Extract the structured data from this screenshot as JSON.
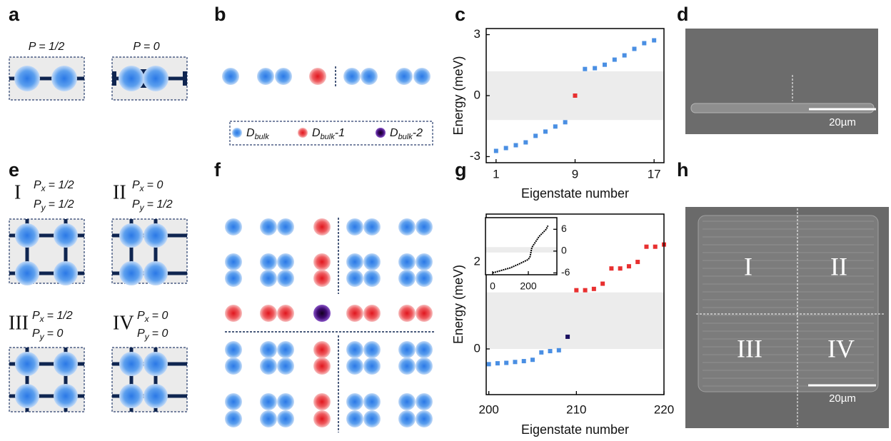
{
  "panel_labels": [
    "a",
    "b",
    "c",
    "d",
    "e",
    "f",
    "g",
    "h"
  ],
  "panel_a": {
    "labels": [
      "P = 1/2",
      "P = 0"
    ]
  },
  "panel_b": {
    "legend": [
      {
        "symbol": "D",
        "subscript": "bulk"
      },
      {
        "symbol": "D",
        "subscript": "bulk",
        "suffix": "-1"
      },
      {
        "symbol": "D",
        "subscript": "bulk",
        "suffix": "-2"
      }
    ]
  },
  "panel_d": {
    "scale_bar": "20µm"
  },
  "panel_e": {
    "cells": [
      {
        "numeral": "I",
        "lines": [
          {
            "symbol": "P",
            "subscript": "x",
            "value": "= 1/2"
          },
          {
            "symbol": "P",
            "subscript": "y",
            "value": "= 1/2"
          }
        ]
      },
      {
        "numeral": "II",
        "lines": [
          {
            "symbol": "P",
            "subscript": "x",
            "value": "=   0"
          },
          {
            "symbol": "P",
            "subscript": "y",
            "value": "= 1/2"
          }
        ]
      },
      {
        "numeral": "III",
        "lines": [
          {
            "symbol": "P",
            "subscript": "x",
            "value": "= 1/2"
          },
          {
            "symbol": "P",
            "subscript": "y",
            "value": "=  0"
          }
        ]
      },
      {
        "numeral": "IV",
        "lines": [
          {
            "symbol": "P",
            "subscript": "x",
            "value": "=   0"
          },
          {
            "symbol": "P",
            "subscript": "y",
            "value": "=   0"
          }
        ]
      }
    ]
  },
  "panel_h": {
    "regions": [
      "I",
      "II",
      "III",
      "IV"
    ],
    "scale_bar": "20µm"
  },
  "chart_data": [
    {
      "type": "scatter",
      "xlabel": "Eigenstate number",
      "ylabel": "Energy (meV)",
      "xlim": [
        0,
        18
      ],
      "ylim": [
        -3.3,
        3.3
      ],
      "xticks": [
        1,
        9,
        17
      ],
      "yticks": [
        3,
        0,
        -3
      ],
      "band": [
        -1.2,
        1.2
      ],
      "series": [
        {
          "color": "#4a8fe3",
          "x": [
            1,
            2,
            3,
            4,
            5,
            6,
            7,
            8,
            10,
            11,
            12,
            13,
            14,
            15,
            16,
            17
          ],
          "values": [
            -2.72,
            -2.58,
            -2.44,
            -2.3,
            -1.98,
            -1.77,
            -1.52,
            -1.31,
            1.31,
            1.35,
            1.52,
            1.77,
            1.98,
            2.3,
            2.58,
            2.72
          ]
        },
        {
          "color": "#e83030",
          "x": [
            9
          ],
          "values": [
            0
          ]
        }
      ]
    },
    {
      "type": "scatter",
      "xlabel": "Eigenstate number",
      "ylabel": "Energy (meV)",
      "xlim": [
        199.7,
        220
      ],
      "ylim": [
        -1.05,
        3.1
      ],
      "xticks": [
        200,
        210,
        220
      ],
      "yticks": [
        0,
        2
      ],
      "band": [
        0,
        1.3
      ],
      "series": [
        {
          "color": "#4a8fe3",
          "x": [
            200,
            201,
            202,
            203,
            204,
            205,
            206,
            207,
            208
          ],
          "values": [
            -0.35,
            -0.33,
            -0.32,
            -0.3,
            -0.28,
            -0.25,
            -0.08,
            -0.05,
            -0.03
          ]
        },
        {
          "color": "#1a1060",
          "x": [
            209
          ],
          "values": [
            0.28
          ]
        },
        {
          "color": "#e83030",
          "x": [
            210,
            211,
            212,
            213,
            214,
            215,
            216,
            217,
            218,
            219,
            220
          ],
          "values": [
            1.35,
            1.35,
            1.38,
            1.5,
            1.85,
            1.85,
            1.9,
            2.0,
            2.35,
            2.35,
            2.4
          ]
        }
      ]
    },
    {
      "type": "line",
      "xlim": [
        -40,
        360
      ],
      "ylim": [
        -6.5,
        9.2
      ],
      "xticks": [
        0,
        200
      ],
      "yticks": [
        6,
        0,
        -6
      ],
      "band": [
        -0.4,
        1.1
      ],
      "color": "#000000",
      "x": [
        0,
        50,
        100,
        150,
        200,
        210,
        220,
        240,
        260,
        280,
        300,
        310
      ],
      "values": [
        -6,
        -5.3,
        -4.6,
        -3.5,
        -2.3,
        -1.5,
        1,
        2.5,
        4,
        5,
        6,
        7
      ]
    }
  ]
}
